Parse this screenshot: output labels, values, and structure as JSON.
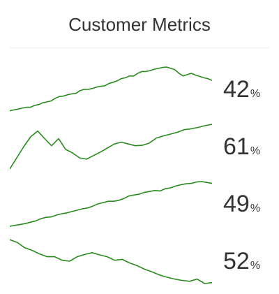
{
  "header": {
    "title": "Customer Metrics"
  },
  "colors": {
    "line": "#2a8a1e",
    "text": "#333333",
    "divider": "#ebebeb"
  },
  "metrics": [
    {
      "value": "42",
      "unit": "%"
    },
    {
      "value": "61",
      "unit": "%"
    },
    {
      "value": "49",
      "unit": "%"
    },
    {
      "value": "52",
      "unit": "%"
    }
  ],
  "chart_data": {
    "type": "line",
    "series": [
      {
        "values": [
          0.02,
          0.04,
          0.06,
          0.08,
          0.1,
          0.1,
          0.14,
          0.16,
          0.2,
          0.22,
          0.24,
          0.3,
          0.34,
          0.35,
          0.38,
          0.4,
          0.41,
          0.47,
          0.5,
          0.5,
          0.52,
          0.55,
          0.57,
          0.58,
          0.63,
          0.66,
          0.69,
          0.74,
          0.76,
          0.8,
          0.8,
          0.86,
          0.9,
          0.9,
          0.92,
          0.95,
          0.97,
          0.99,
          1.0,
          0.97,
          0.94,
          0.86,
          0.8,
          0.83,
          0.86,
          0.82,
          0.79,
          0.76,
          0.74,
          0.7
        ]
      },
      {
        "values": [
          0.0,
          0.25,
          0.5,
          0.72,
          0.85,
          0.68,
          0.52,
          0.68,
          0.44,
          0.36,
          0.25,
          0.22,
          0.3,
          0.38,
          0.47,
          0.56,
          0.6,
          0.56,
          0.52,
          0.53,
          0.58,
          0.69,
          0.74,
          0.78,
          0.82,
          0.88,
          0.9,
          0.93,
          0.97,
          1.0
        ]
      },
      {
        "values": [
          0.0,
          0.02,
          0.04,
          0.06,
          0.09,
          0.12,
          0.17,
          0.2,
          0.21,
          0.25,
          0.28,
          0.3,
          0.33,
          0.36,
          0.39,
          0.41,
          0.45,
          0.5,
          0.53,
          0.56,
          0.56,
          0.58,
          0.62,
          0.68,
          0.7,
          0.72,
          0.76,
          0.78,
          0.8,
          0.79,
          0.84,
          0.86,
          0.9,
          0.93,
          0.95,
          0.96,
          0.99,
          1.0,
          0.98,
          0.96
        ]
      },
      {
        "values": [
          0.98,
          0.92,
          0.8,
          0.74,
          0.66,
          0.6,
          0.6,
          0.52,
          0.5,
          0.6,
          0.65,
          0.69,
          0.64,
          0.6,
          0.52,
          0.54,
          0.46,
          0.4,
          0.32,
          0.26,
          0.19,
          0.14,
          0.1,
          0.07,
          0.05,
          0.1,
          0.0,
          0.02
        ]
      }
    ]
  }
}
